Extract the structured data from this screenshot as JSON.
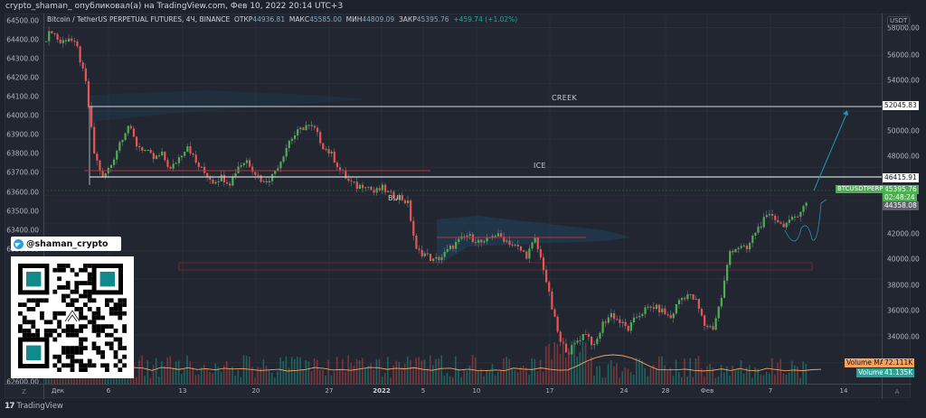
{
  "header": {
    "publish_line": "crypto_shaman_ опубликовал(а) на TradingView.com, Фев 10, 2022 20:14 UTC+3"
  },
  "legend": {
    "symbol": "Bitcoin / TetherUS PERPETUAL FUTURES, 4Ч, BINANCE",
    "open_label": "ОТКР",
    "open": "44936.81",
    "high_label": "МАКС",
    "high": "45585.00",
    "low_label": "МИН",
    "low": "44809.09",
    "close_label": "ЗАКР",
    "close": "45395.76",
    "change": "+459.74 (+1.02%)"
  },
  "right_axis": {
    "currency": "USDT",
    "ticks": [
      "58000.00",
      "56000.00",
      "54000.00",
      "50000.00",
      "48000.00",
      "42000.00",
      "40000.00",
      "38000.00",
      "36000.00",
      "34000.00"
    ],
    "tags": {
      "creek": "52045.83",
      "ice": "46415.91",
      "last_price": "45395.76",
      "countdown": "02:48:24",
      "bui": "44358.08",
      "volume_ma_label": "Volume MA",
      "volume_ma": "72.111K",
      "volume_label": "Volume",
      "volume": "41.135K",
      "symbol_tag": "BTCUSDTPERP"
    }
  },
  "left_axis": {
    "ticks": [
      "64500.00",
      "64400.00",
      "64300.00",
      "64200.00",
      "64100.00",
      "64000.00",
      "63900.00",
      "63800.00",
      "63700.00",
      "63600.00",
      "63500.00",
      "63400.00",
      "63300.00",
      "62600.00"
    ]
  },
  "time_axis": {
    "corner_left": "Z",
    "corner_right": "A",
    "ticks": [
      "Дек",
      "6",
      "13",
      "20",
      "27",
      "2022",
      "5",
      "10",
      "17",
      "24",
      "28",
      "Фев",
      "7",
      "14"
    ]
  },
  "annotations": {
    "creek": "CREEK",
    "ice": "ICE",
    "bui": "BUI"
  },
  "promo": {
    "telegram_handle": "@shaman_crypto"
  },
  "footer": {
    "brand": "TradingView"
  },
  "colors": {
    "up": "#26a69a",
    "up_candle": "#4caf50",
    "down": "#ef5350",
    "volume_ma": "#f7a15f",
    "arrow": "#2196b6",
    "level": "#cfd2d8"
  },
  "chart_data": {
    "type": "candlestick",
    "title": "Bitcoin / TetherUS PERPETUAL FUTURES, 4Ч, BINANCE",
    "xlabel": "",
    "ylabel": "USDT",
    "ylim": [
      32500,
      59000
    ],
    "x_ticks": [
      "Дек",
      "6",
      "13",
      "20",
      "27",
      "2022",
      "5",
      "10",
      "17",
      "24",
      "28",
      "Фев",
      "7",
      "14"
    ],
    "levels": [
      {
        "name": "CREEK",
        "price": 52045.83
      },
      {
        "name": "ICE",
        "price": 46415.91
      },
      {
        "name": "BUI",
        "price": 44358.08
      }
    ],
    "path_close": [
      57000,
      57800,
      56900,
      57300,
      56500,
      54000,
      49000,
      47200,
      48200,
      49800,
      51000,
      49600,
      49200,
      48600,
      48900,
      47800,
      48700,
      49600,
      48300,
      47600,
      47000,
      47300,
      46900,
      48100,
      48500,
      47600,
      46900,
      47400,
      48500,
      49900,
      50500,
      51000,
      50700,
      49500,
      48900,
      47800,
      47000,
      46600,
      46800,
      46200,
      46500,
      46000,
      45900,
      45400,
      42000,
      41800,
      41300,
      41600,
      42200,
      42700,
      43100,
      42800,
      42500,
      43200,
      43000,
      42600,
      42200,
      41700,
      42800,
      40800,
      37900,
      35400,
      34800,
      35600,
      36200,
      35100,
      36800,
      37500,
      36900,
      36400,
      37300,
      37800,
      38000,
      37700,
      37200,
      38500,
      38900,
      38400,
      36700,
      36500,
      38700,
      42000,
      42300,
      42100,
      43400,
      44200,
      44600,
      43900,
      44000,
      44700,
      45395
    ],
    "forecast": [
      {
        "x": "Фев 9",
        "y": 46300
      },
      {
        "x": "Фев 13",
        "y": 51200
      }
    ],
    "volume": {
      "last": "41.135K",
      "ma": "72.111K"
    }
  }
}
